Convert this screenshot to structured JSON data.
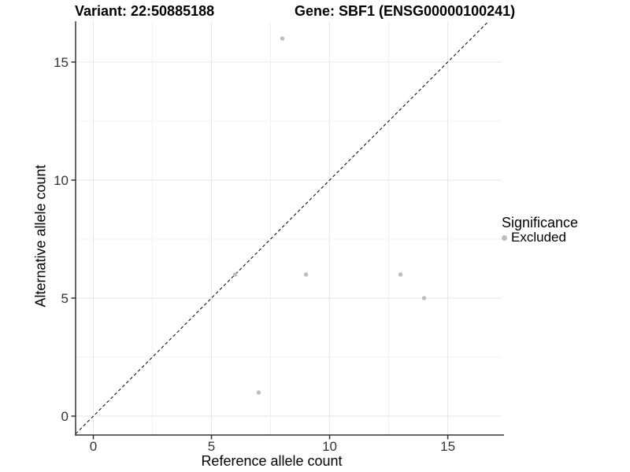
{
  "header": {
    "title_left": "Variant: 22:50885188",
    "title_right": "Gene: SBF1 (ENSG00000100241)"
  },
  "chart_data": {
    "type": "scatter",
    "title": "Variant: 22:50885188 / Gene: SBF1 (ENSG00000100241)",
    "xlabel": "Reference allele count",
    "ylabel": "Alternative allele count",
    "xlim": [
      -0.75,
      17.28
    ],
    "ylim": [
      -0.8,
      16.73
    ],
    "x_ticks": [
      0,
      5,
      10,
      15
    ],
    "y_ticks": [
      0,
      5,
      10,
      15
    ],
    "x_minor_gridlines": [
      2.5,
      7.5,
      12.5
    ],
    "y_minor_gridlines": [
      2.5,
      7.5,
      12.5
    ],
    "grid": "on",
    "identity_line": {
      "style": "dashed",
      "color": "#000000",
      "equation": "y = x"
    },
    "series": [
      {
        "name": "Excluded",
        "color": "#bebebe",
        "points": [
          {
            "x": 8,
            "y": 16
          },
          {
            "x": 6,
            "y": 6
          },
          {
            "x": 9,
            "y": 6
          },
          {
            "x": 13,
            "y": 6
          },
          {
            "x": 14,
            "y": 5
          },
          {
            "x": 7,
            "y": 1
          }
        ]
      }
    ],
    "legend": {
      "title": "Significance",
      "position": "right",
      "items": [
        {
          "label": "Excluded",
          "color": "#bebebe"
        }
      ]
    },
    "colors": {
      "point": "#bebebe",
      "grid_major": "#e6e6e6",
      "grid_minor": "#f2f2f2",
      "axis": "#333333",
      "background": "#ffffff"
    }
  }
}
